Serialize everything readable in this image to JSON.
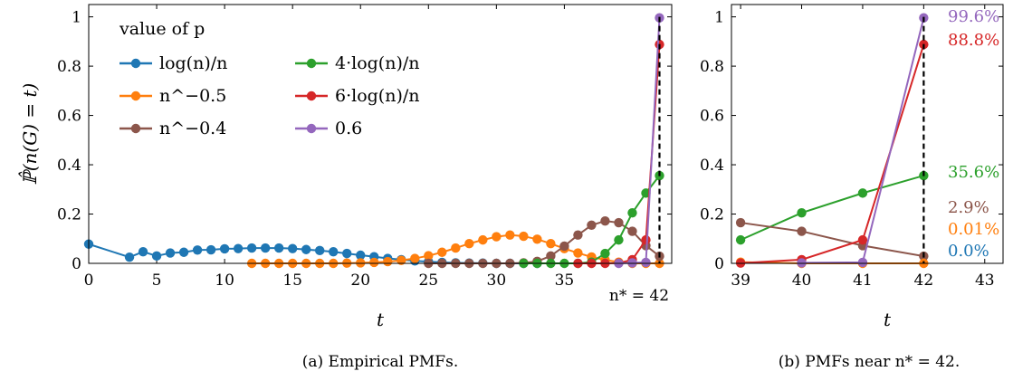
{
  "chart_data": [
    {
      "type": "line",
      "caption": "(a) Empirical PMFs.",
      "xlabel": "t",
      "ylabel": "ℙ̂(n(G) = t)",
      "xlim": [
        0,
        42.9
      ],
      "ylim": [
        0,
        1.05
      ],
      "x_ticks": [
        "0",
        "5",
        "10",
        "15",
        "20",
        "25",
        "30",
        "35"
      ],
      "y_ticks": [
        "0",
        "0.2",
        "0.4",
        "0.6",
        "0.8",
        "1"
      ],
      "marker_label": "n* = 42",
      "marker_x": 42,
      "legend": {
        "title": "value of p",
        "position": "top-left"
      },
      "series": [
        {
          "name": "log(n)/n",
          "color": "#1f77b4",
          "x": [
            0,
            3,
            4,
            5,
            6,
            7,
            8,
            9,
            10,
            11,
            12,
            13,
            14,
            15,
            16,
            17,
            18,
            19,
            20,
            21,
            22,
            23,
            24,
            25,
            26,
            27,
            28,
            29,
            30,
            31,
            32,
            33
          ],
          "y": [
            0.078,
            0.025,
            0.047,
            0.03,
            0.042,
            0.045,
            0.054,
            0.055,
            0.059,
            0.06,
            0.062,
            0.062,
            0.062,
            0.06,
            0.056,
            0.052,
            0.047,
            0.04,
            0.033,
            0.027,
            0.02,
            0.015,
            0.01,
            0.007,
            0.004,
            0.002,
            0.001,
            0.001,
            0,
            0,
            0,
            0
          ]
        },
        {
          "name": "n^−0.5",
          "color": "#ff7f0e",
          "x": [
            12,
            13,
            14,
            15,
            16,
            17,
            18,
            19,
            20,
            21,
            22,
            23,
            24,
            25,
            26,
            27,
            28,
            29,
            30,
            31,
            32,
            33,
            34,
            35,
            36,
            37,
            38,
            39,
            40,
            41,
            42
          ],
          "y": [
            0,
            0,
            0,
            0,
            0,
            0,
            0,
            0.001,
            0.002,
            0.004,
            0.007,
            0.012,
            0.02,
            0.031,
            0.045,
            0.062,
            0.08,
            0.095,
            0.108,
            0.115,
            0.11,
            0.098,
            0.08,
            0.06,
            0.042,
            0.026,
            0.014,
            0.005,
            0,
            0,
            0
          ]
        },
        {
          "name": "n^−0.4",
          "color": "#8c564b",
          "x": [
            25,
            26,
            27,
            28,
            29,
            30,
            31,
            32,
            33,
            34,
            35,
            36,
            37,
            38,
            39,
            40,
            41,
            42
          ],
          "y": [
            0,
            0,
            0,
            0,
            0,
            0,
            0,
            0.002,
            0.008,
            0.03,
            0.07,
            0.115,
            0.155,
            0.172,
            0.165,
            0.13,
            0.072,
            0.029
          ]
        },
        {
          "name": "4·log(n)/n",
          "color": "#2ca02c",
          "x": [
            32,
            33,
            34,
            35,
            36,
            37,
            38,
            39,
            40,
            41,
            42
          ],
          "y": [
            0,
            0,
            0,
            0,
            0,
            0.005,
            0.04,
            0.095,
            0.205,
            0.285,
            0.356
          ]
        },
        {
          "name": "6·log(n)/n",
          "color": "#d62728",
          "x": [
            36,
            37,
            38,
            39,
            40,
            41,
            42
          ],
          "y": [
            0,
            0,
            0,
            0.001,
            0.015,
            0.095,
            0.888
          ]
        },
        {
          "name": "0.6",
          "color": "#9467bd",
          "x": [
            39,
            40,
            41,
            42
          ],
          "y": [
            0,
            0.002,
            0.004,
            0.996
          ]
        }
      ]
    },
    {
      "type": "line",
      "caption": "(b) PMFs near n* = 42.",
      "xlabel": "t",
      "xlim": [
        38.85,
        43.3
      ],
      "ylim": [
        0,
        1.05
      ],
      "x_ticks": [
        "39",
        "40",
        "41",
        "42",
        "43"
      ],
      "y_ticks": [
        "0",
        "0.2",
        "0.4",
        "0.6",
        "0.8",
        "1"
      ],
      "marker_x": 42,
      "annotations": [
        "99.6%",
        "88.8%",
        "35.6%",
        "2.9%",
        "0.01%",
        "0.0%"
      ],
      "series": [
        {
          "name": "4·log(n)/n",
          "color": "#2ca02c",
          "x": [
            39,
            40,
            41,
            42
          ],
          "y": [
            0.095,
            0.205,
            0.285,
            0.356
          ]
        },
        {
          "name": "n^−0.4",
          "color": "#8c564b",
          "x": [
            39,
            40,
            41,
            42
          ],
          "y": [
            0.165,
            0.13,
            0.072,
            0.029
          ]
        },
        {
          "name": "n^−0.5",
          "color": "#ff7f0e",
          "x": [
            39,
            40,
            41,
            42
          ],
          "y": [
            0.005,
            0,
            0,
            0
          ]
        },
        {
          "name": "6·log(n)/n",
          "color": "#d62728",
          "x": [
            39,
            40,
            41,
            42
          ],
          "y": [
            0.001,
            0.015,
            0.095,
            0.888
          ]
        },
        {
          "name": "0.6",
          "color": "#9467bd",
          "x": [
            40,
            41,
            42
          ],
          "y": [
            0.002,
            0.004,
            0.996
          ]
        }
      ]
    }
  ]
}
